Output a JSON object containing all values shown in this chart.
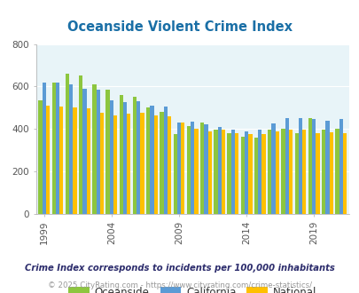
{
  "title": "Oceanside Violent Crime Index",
  "years": [
    1999,
    2000,
    2001,
    2002,
    2003,
    2004,
    2005,
    2006,
    2007,
    2008,
    2009,
    2010,
    2011,
    2012,
    2013,
    2014,
    2015,
    2016,
    2017,
    2018,
    2019,
    2020,
    2021
  ],
  "oceanside": [
    533,
    620,
    660,
    650,
    608,
    585,
    560,
    550,
    500,
    480,
    375,
    415,
    430,
    395,
    380,
    365,
    360,
    395,
    400,
    380,
    450,
    395,
    400
  ],
  "california": [
    620,
    620,
    610,
    590,
    583,
    535,
    525,
    530,
    508,
    505,
    430,
    435,
    420,
    410,
    395,
    390,
    395,
    428,
    450,
    450,
    445,
    440,
    445
  ],
  "national": [
    510,
    505,
    500,
    495,
    475,
    465,
    470,
    475,
    465,
    460,
    430,
    400,
    390,
    395,
    380,
    375,
    375,
    387,
    395,
    395,
    380,
    385,
    380
  ],
  "bar_colors": {
    "oceanside": "#8dc63f",
    "california": "#5b9bd5",
    "national": "#ffc000"
  },
  "ylim": [
    0,
    800
  ],
  "yticks": [
    0,
    200,
    400,
    600,
    800
  ],
  "xtick_years": [
    1999,
    2004,
    2009,
    2014,
    2019
  ],
  "bg_color": "#e8f4f8",
  "footnote1": "Crime Index corresponds to incidents per 100,000 inhabitants",
  "footnote2": "© 2025 CityRating.com - https://www.cityrating.com/crime-statistics/",
  "title_color": "#1a6fa6",
  "footnote1_color": "#2c2c6c",
  "footnote2_color": "#999999"
}
